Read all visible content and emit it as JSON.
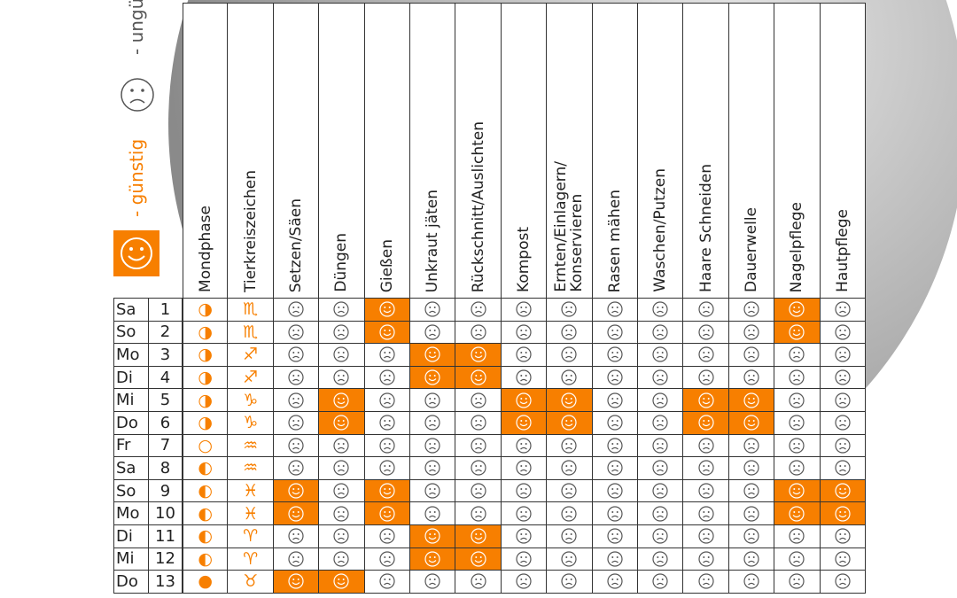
{
  "legend": {
    "good": "- günstig",
    "bad": "- ungünstig"
  },
  "table": {
    "columns": [
      "Mondphase",
      "Tierkreiszeichen",
      "Setzen/Säen",
      "Düngen",
      "Gießen",
      "Unkraut jäten",
      "Rückschnitt/Auslichten",
      "Kompost",
      "Ernten/Einlagern/ Konservieren",
      "Rasen mähen",
      "Waschen/Putzen",
      "Haare Schneiden",
      "Dauerwelle",
      "Nagelpflege",
      "Hautpflege"
    ],
    "rows": [
      {
        "day": "Sa",
        "date": 1,
        "moon": "◑",
        "zodiac": "♏",
        "good": [
          false,
          false,
          true,
          false,
          false,
          false,
          false,
          false,
          false,
          false,
          false,
          true,
          false
        ]
      },
      {
        "day": "So",
        "date": 2,
        "moon": "◑",
        "zodiac": "♏",
        "good": [
          false,
          false,
          true,
          false,
          false,
          false,
          false,
          false,
          false,
          false,
          false,
          true,
          false
        ]
      },
      {
        "day": "Mo",
        "date": 3,
        "moon": "◑",
        "zodiac": "♐",
        "good": [
          false,
          false,
          false,
          true,
          true,
          false,
          false,
          false,
          false,
          false,
          false,
          false,
          false
        ]
      },
      {
        "day": "Di",
        "date": 4,
        "moon": "◑",
        "zodiac": "♐",
        "good": [
          false,
          false,
          false,
          true,
          true,
          false,
          false,
          false,
          false,
          false,
          false,
          false,
          false
        ]
      },
      {
        "day": "Mi",
        "date": 5,
        "moon": "◑",
        "zodiac": "♑",
        "good": [
          false,
          true,
          false,
          false,
          false,
          true,
          true,
          false,
          false,
          true,
          true,
          false,
          false
        ]
      },
      {
        "day": "Do",
        "date": 6,
        "moon": "◑",
        "zodiac": "♑",
        "good": [
          false,
          true,
          false,
          false,
          false,
          true,
          true,
          false,
          false,
          true,
          true,
          false,
          false
        ]
      },
      {
        "day": "Fr",
        "date": 7,
        "moon": "○",
        "zodiac": "♒",
        "good": [
          false,
          false,
          false,
          false,
          false,
          false,
          false,
          false,
          false,
          false,
          false,
          false,
          false
        ]
      },
      {
        "day": "Sa",
        "date": 8,
        "moon": "◐",
        "zodiac": "♒",
        "good": [
          false,
          false,
          false,
          false,
          false,
          false,
          false,
          false,
          false,
          false,
          false,
          false,
          false
        ]
      },
      {
        "day": "So",
        "date": 9,
        "moon": "◐",
        "zodiac": "♓",
        "good": [
          true,
          false,
          true,
          false,
          false,
          false,
          false,
          false,
          false,
          false,
          false,
          true,
          true
        ]
      },
      {
        "day": "Mo",
        "date": 10,
        "moon": "◐",
        "zodiac": "♓",
        "good": [
          true,
          false,
          true,
          false,
          false,
          false,
          false,
          false,
          false,
          false,
          false,
          true,
          true
        ]
      },
      {
        "day": "Di",
        "date": 11,
        "moon": "◐",
        "zodiac": "♈",
        "good": [
          false,
          false,
          false,
          true,
          true,
          false,
          false,
          false,
          false,
          false,
          false,
          false,
          false
        ]
      },
      {
        "day": "Mi",
        "date": 12,
        "moon": "◐",
        "zodiac": "♈",
        "good": [
          false,
          false,
          false,
          true,
          true,
          false,
          false,
          false,
          false,
          false,
          false,
          false,
          false
        ]
      },
      {
        "day": "Do",
        "date": 13,
        "moon": "●",
        "zodiac": "♉",
        "good": [
          true,
          true,
          false,
          false,
          false,
          false,
          false,
          false,
          false,
          false,
          false,
          false,
          false
        ]
      }
    ]
  }
}
